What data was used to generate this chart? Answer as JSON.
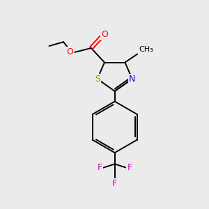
{
  "background_color": "#ebebeb",
  "atom_colors": {
    "C": "#000000",
    "O": "#ff0000",
    "N": "#0000cc",
    "S": "#999900",
    "F": "#cc00cc"
  },
  "bond_color": "#000000",
  "figsize": [
    3.0,
    3.0
  ],
  "dpi": 100,
  "lw": 1.4,
  "font_size": 9,
  "small_font_size": 8
}
